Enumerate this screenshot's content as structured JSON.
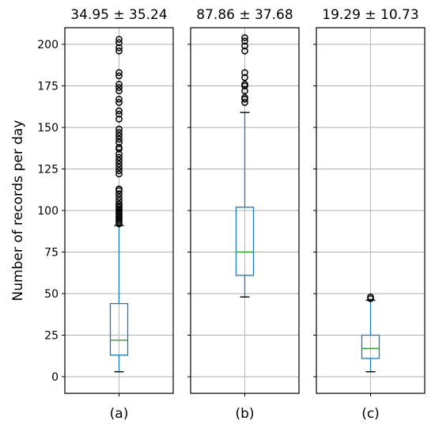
{
  "chart_data": {
    "type": "boxplot",
    "ylabel": "Number of records per day",
    "ylim": [
      -10,
      210
    ],
    "yticks": [
      0,
      25,
      50,
      75,
      100,
      125,
      150,
      175,
      200
    ],
    "grid": true,
    "colors": {
      "box": "#1f77b4",
      "median": "#2ca02c",
      "whisker": "#1f77b4",
      "cap": "#000000",
      "outlier": "#000000",
      "grid": "#b0b0b0",
      "frame": "#000000"
    },
    "panels": [
      {
        "title": "34.95 ± 35.24",
        "category": "(a)",
        "whisker_low": 3,
        "q1": 13,
        "median": 22,
        "q3": 44,
        "whisker_high": 91,
        "outliers": [
          92,
          93,
          94,
          95,
          96,
          97,
          98,
          99,
          100,
          101,
          102,
          103,
          104,
          106,
          108,
          110,
          112,
          113,
          122,
          124,
          126,
          128,
          130,
          132,
          134,
          137,
          138,
          141,
          143,
          145,
          147,
          149,
          155,
          158,
          160,
          165,
          167,
          172,
          174,
          176,
          181,
          183,
          196,
          198,
          201,
          203
        ]
      },
      {
        "title": "87.86 ± 37.68",
        "category": "(b)",
        "whisker_low": 48,
        "q1": 61,
        "median": 75,
        "q3": 102,
        "whisker_high": 159,
        "outliers": [
          165,
          167,
          168,
          172,
          175,
          176,
          180,
          183,
          196,
          199,
          202,
          204
        ]
      },
      {
        "title": "19.29 ± 10.73",
        "category": "(c)",
        "whisker_low": 3,
        "q1": 11,
        "median": 17,
        "q3": 25,
        "whisker_high": 46,
        "outliers": [
          47,
          48
        ]
      }
    ]
  }
}
